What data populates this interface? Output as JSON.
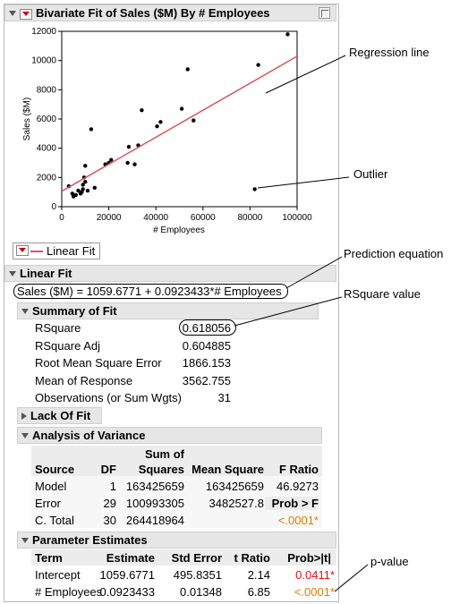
{
  "report_title": "Bivariate Fit of Sales ($M) By # Employees",
  "chart_data": {
    "type": "scatter",
    "xlabel": "# Employees",
    "ylabel": "Sales ($M)",
    "xlim": [
      0,
      100000
    ],
    "ylim": [
      0,
      12000
    ],
    "x_ticks": [
      "0",
      "20000",
      "40000",
      "60000",
      "80000",
      "100000"
    ],
    "y_ticks": [
      "0",
      "2000",
      "4000",
      "6000",
      "8000",
      "10000",
      "12000"
    ],
    "points": [
      [
        3000,
        1400
      ],
      [
        4500,
        900
      ],
      [
        5000,
        700
      ],
      [
        7000,
        1100
      ],
      [
        8000,
        900
      ],
      [
        8500,
        1000
      ],
      [
        9000,
        1200
      ],
      [
        9500,
        2000
      ],
      [
        10000,
        1700
      ],
      [
        10000,
        2800
      ],
      [
        12500,
        5300
      ],
      [
        14000,
        1300
      ],
      [
        18500,
        2900
      ],
      [
        20000,
        3000
      ],
      [
        21000,
        3200
      ],
      [
        28000,
        3000
      ],
      [
        28500,
        4100
      ],
      [
        31000,
        2900
      ],
      [
        32500,
        4200
      ],
      [
        34000,
        6600
      ],
      [
        40500,
        5500
      ],
      [
        42000,
        5800
      ],
      [
        51000,
        6700
      ],
      [
        53500,
        9400
      ],
      [
        56000,
        5900
      ],
      [
        82000,
        1200
      ],
      [
        83500,
        9700
      ],
      [
        96000,
        11800
      ],
      [
        6000,
        800
      ],
      [
        9000,
        1500
      ],
      [
        11000,
        1100
      ]
    ],
    "fit_line": {
      "intercept": 1059.6771,
      "slope": 0.0923433,
      "x_range": [
        0,
        100000
      ],
      "color": "#d8545d"
    },
    "point_color": "#000000"
  },
  "legend": {
    "label": "Linear Fit"
  },
  "linear_fit": {
    "title": "Linear Fit",
    "equation": "Sales ($M) = 1059.6771 + 0.0923433*# Employees"
  },
  "summary": {
    "title": "Summary of Fit",
    "rows": [
      {
        "label": "RSquare",
        "value": "0.618056"
      },
      {
        "label": "RSquare Adj",
        "value": "0.604885"
      },
      {
        "label": "Root Mean Square Error",
        "value": "1866.153"
      },
      {
        "label": "Mean of Response",
        "value": "3562.755"
      },
      {
        "label": "Observations (or Sum Wgts)",
        "value": "31"
      }
    ]
  },
  "lack_of_fit": {
    "title": "Lack Of Fit"
  },
  "anova": {
    "title": "Analysis of Variance",
    "headers": {
      "source": "Source",
      "df": "DF",
      "ss_top": "Sum of",
      "ss": "Squares",
      "ms": "Mean Square",
      "f": "F Ratio"
    },
    "rows": [
      {
        "source": "Model",
        "df": "1",
        "ss": "163425659",
        "ms": "163425659",
        "f": "46.9273"
      },
      {
        "source": "Error",
        "df": "29",
        "ss": "100993305",
        "ms": "3482527.8",
        "f": "Prob > F"
      },
      {
        "source": "C. Total",
        "df": "30",
        "ss": "264418964",
        "ms": "",
        "f": "<.0001*"
      }
    ]
  },
  "params": {
    "title": "Parameter Estimates",
    "headers": {
      "term": "Term",
      "est": "Estimate",
      "se": "Std Error",
      "t": "t Ratio",
      "p": "Prob>|t|"
    },
    "rows": [
      {
        "term": "Intercept",
        "est": "1059.6771",
        "se": "495.8351",
        "t": "2.14",
        "p": "0.0411*"
      },
      {
        "term": "# Employees",
        "est": "0.0923433",
        "se": "0.01348",
        "t": "6.85",
        "p": "<.0001*"
      }
    ]
  },
  "annotations": {
    "regression_line": "Regression line",
    "outlier": "Outlier",
    "prediction_equation": "Prediction equation",
    "rsquare_value": "RSquare value",
    "p_value": "p-value"
  }
}
